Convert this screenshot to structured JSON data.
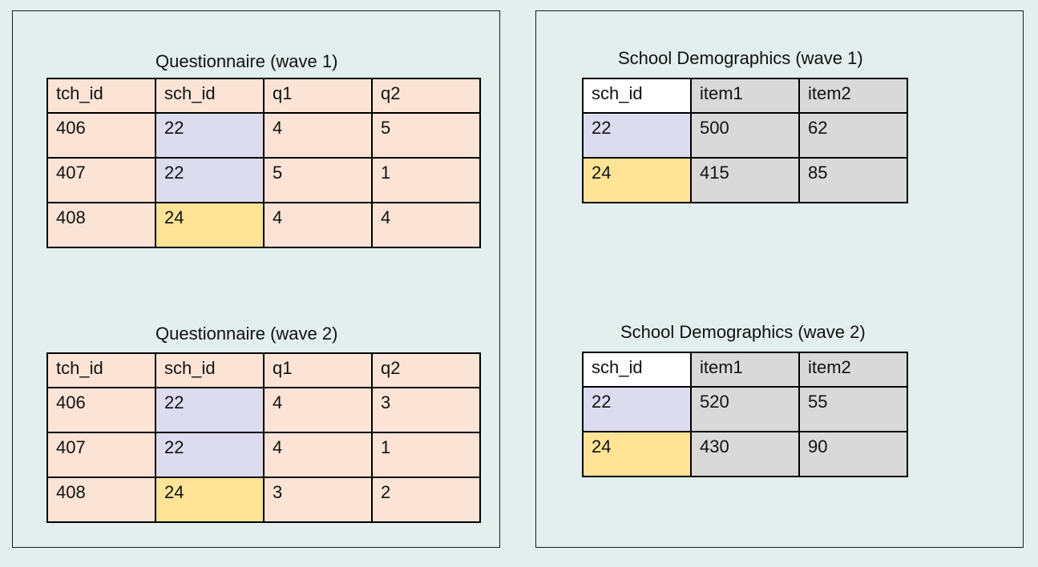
{
  "questionnaire_wave1": {
    "title": "Questionnaire (wave 1)",
    "headers": [
      "tch_id",
      "sch_id",
      "q1",
      "q2"
    ],
    "rows": [
      [
        "406",
        "22",
        "4",
        "5"
      ],
      [
        "407",
        "22",
        "5",
        "1"
      ],
      [
        "408",
        "24",
        "4",
        "4"
      ]
    ]
  },
  "questionnaire_wave2": {
    "title": "Questionnaire (wave 2)",
    "headers": [
      "tch_id",
      "sch_id",
      "q1",
      "q2"
    ],
    "rows": [
      [
        "406",
        "22",
        "4",
        "3"
      ],
      [
        "407",
        "22",
        "4",
        "1"
      ],
      [
        "408",
        "24",
        "3",
        "2"
      ]
    ]
  },
  "school_demographics_wave1": {
    "title": "School Demographics (wave 1)",
    "headers": [
      "sch_id",
      "item1",
      "item2"
    ],
    "rows": [
      [
        "22",
        "500",
        "62"
      ],
      [
        "24",
        "415",
        "85"
      ]
    ]
  },
  "school_demographics_wave2": {
    "title": "School Demographics (wave 2)",
    "headers": [
      "sch_id",
      "item1",
      "item2"
    ],
    "rows": [
      [
        "22",
        "520",
        "55"
      ],
      [
        "24",
        "430",
        "90"
      ]
    ]
  },
  "colors": {
    "background": "#e2efec",
    "questionnaire_cell": "#fbe4d6",
    "school_22": "#dddbee",
    "school_24": "#ffe497",
    "demographics_cell": "#d9d9d9",
    "header_key_cell": "#ffffff"
  }
}
